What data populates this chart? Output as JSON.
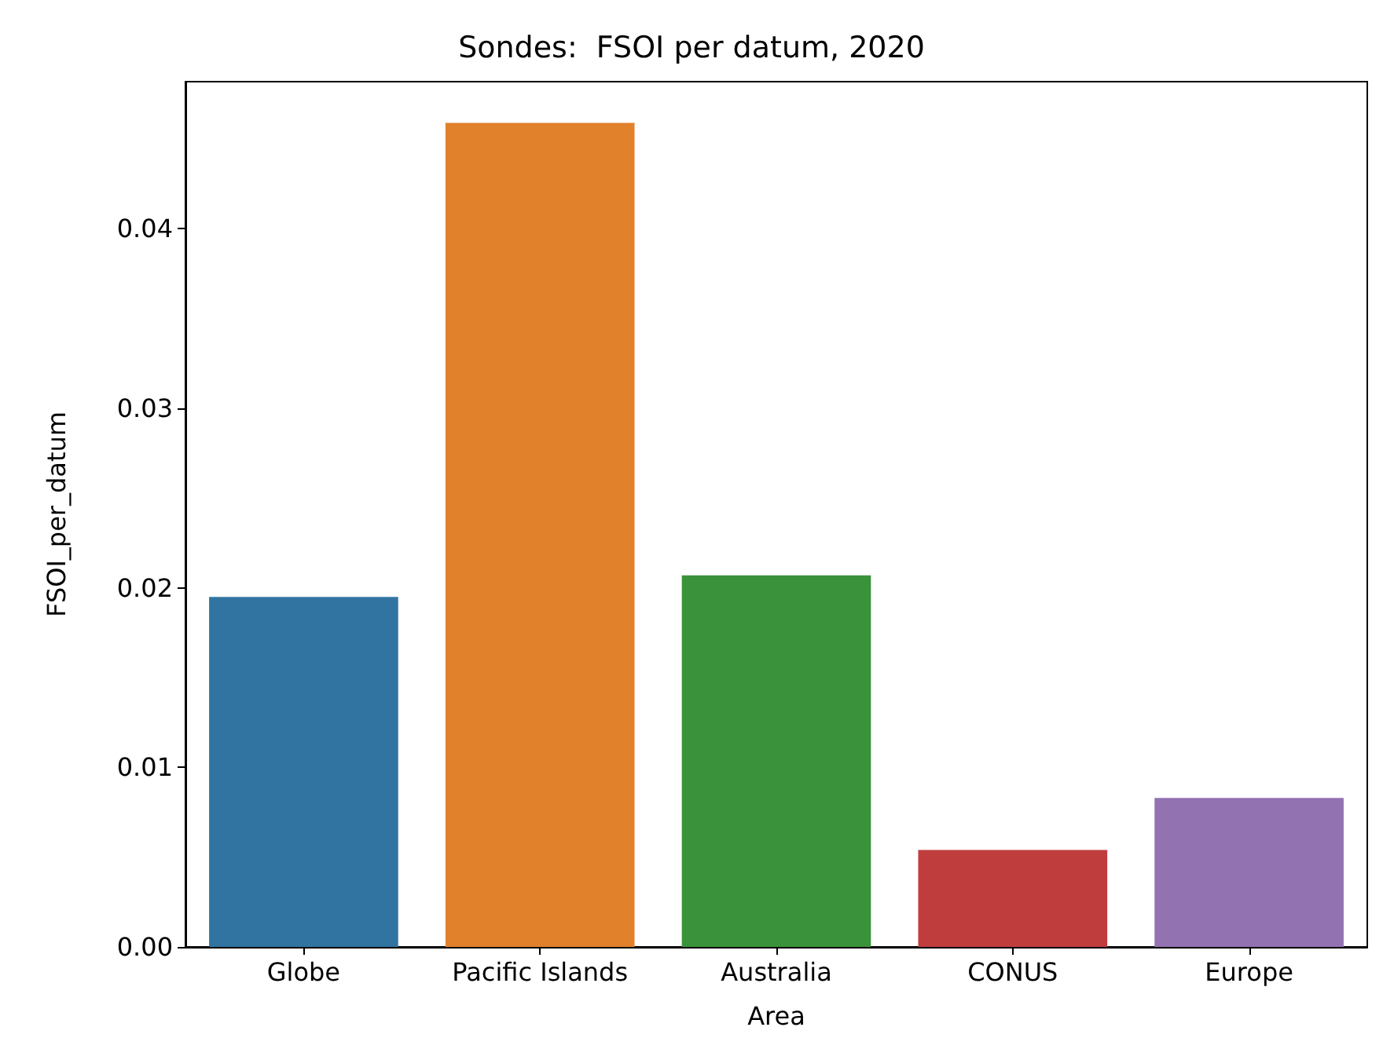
{
  "chart_data": {
    "type": "bar",
    "title": "Sondes:  FSOI per datum, 2020",
    "xlabel": "Area",
    "ylabel": "FSOI_per_datum",
    "categories": [
      "Globe",
      "Pacific Islands",
      "Australia",
      "CONUS",
      "Europe"
    ],
    "values": [
      0.0195,
      0.0459,
      0.0207,
      0.0054,
      0.0083
    ],
    "colors": [
      "#3274a1",
      "#e1812c",
      "#3a923a",
      "#c03d3e",
      "#9372b2"
    ],
    "ylim": [
      0,
      0.0482
    ],
    "yticks": [
      {
        "value": 0,
        "label": "0.00"
      },
      0.01,
      0.02,
      0.03,
      0.04
    ],
    "grid": false
  }
}
